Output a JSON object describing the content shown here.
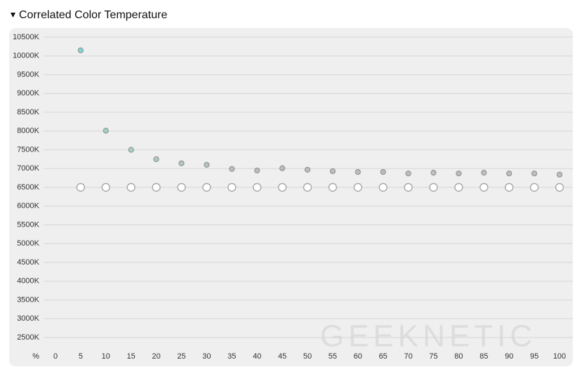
{
  "chart_data": {
    "type": "scatter",
    "title": "Correlated Color Temperature",
    "xlabel": "%",
    "x": [
      5,
      10,
      15,
      20,
      25,
      30,
      35,
      40,
      45,
      50,
      55,
      60,
      65,
      70,
      75,
      80,
      85,
      90,
      95,
      100
    ],
    "series": [
      {
        "colors": [
          "#7fd4d6",
          "#9ed3bc",
          "#a8cfbe",
          "#acc9bd",
          "#b3c4bd",
          "#b5c2bd",
          "#b8bebc",
          "#b9bdbc",
          "#b9bdbc",
          "#babdbc",
          "#bbbdbc",
          "#bbbdbc",
          "#bbbdbc",
          "#bcbdbc",
          "#bcbdbc",
          "#bcbdbc",
          "#bcbdbc",
          "#bcbdbc",
          "#bcbdbc",
          "#bcbdbc"
        ],
        "values": [
          10150,
          8010,
          7500,
          7250,
          7140,
          7100,
          6990,
          6950,
          7010,
          6970,
          6930,
          6910,
          6910,
          6870,
          6890,
          6870,
          6890,
          6870,
          6870,
          6840
        ]
      },
      {
        "color": "#ffffff",
        "values": [
          6500,
          6500,
          6500,
          6500,
          6500,
          6500,
          6500,
          6500,
          6500,
          6500,
          6500,
          6500,
          6500,
          6500,
          6500,
          6500,
          6500,
          6500,
          6500,
          6500
        ]
      }
    ],
    "xlim": [
      0,
      100
    ],
    "xticks": [
      0,
      5,
      10,
      15,
      20,
      25,
      30,
      35,
      40,
      45,
      50,
      55,
      60,
      65,
      70,
      75,
      80,
      85,
      90,
      95,
      100
    ],
    "ylim": [
      2500,
      10500
    ],
    "yticks": [
      {
        "value": 2500,
        "label": "2500K"
      },
      {
        "value": 3000,
        "label": "3000K"
      },
      {
        "value": 3500,
        "label": "3500K"
      },
      {
        "value": 4000,
        "label": "4000K"
      },
      {
        "value": 4500,
        "label": "4500K"
      },
      {
        "value": 5000,
        "label": "5000K"
      },
      {
        "value": 5500,
        "label": "5500K"
      },
      {
        "value": 6000,
        "label": "6000K"
      },
      {
        "value": 6500,
        "label": "6500K"
      },
      {
        "value": 7000,
        "label": "7000K"
      },
      {
        "value": 7500,
        "label": "7500K"
      },
      {
        "value": 8000,
        "label": "8000K"
      },
      {
        "value": 8500,
        "label": "8500K"
      },
      {
        "value": 9000,
        "label": "9000K"
      },
      {
        "value": 9500,
        "label": "9500K"
      },
      {
        "value": 10000,
        "label": "10000K"
      },
      {
        "value": 10500,
        "label": "10500K"
      }
    ],
    "grid": true,
    "watermark": "GEEKNETIC"
  }
}
